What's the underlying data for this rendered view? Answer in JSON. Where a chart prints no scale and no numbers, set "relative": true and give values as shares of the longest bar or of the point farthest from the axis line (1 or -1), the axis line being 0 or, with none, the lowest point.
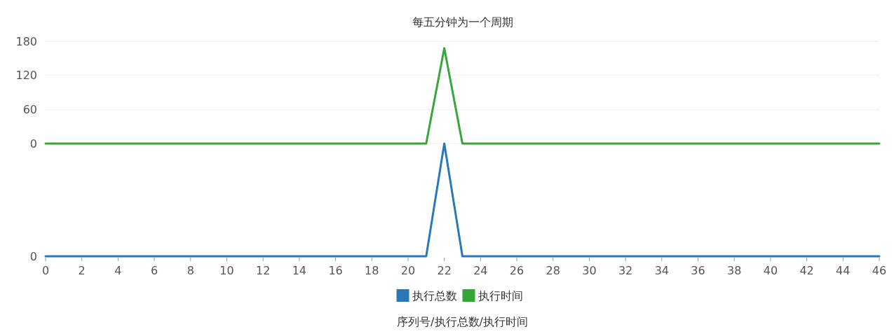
{
  "chart_data": [
    {
      "type": "line",
      "title": "每五分钟为一个周期",
      "x": [
        0,
        1,
        2,
        3,
        4,
        5,
        6,
        7,
        8,
        9,
        10,
        11,
        12,
        13,
        14,
        15,
        16,
        17,
        18,
        19,
        20,
        21,
        22,
        23,
        24,
        25,
        26,
        27,
        28,
        29,
        30,
        31,
        32,
        33,
        34,
        35,
        36,
        37,
        38,
        39,
        40,
        41,
        42,
        43,
        44,
        45,
        46
      ],
      "xlim": [
        0,
        46
      ],
      "ylim": [
        0,
        180
      ],
      "yticks": [
        0,
        60,
        120,
        180
      ],
      "grid": "y",
      "legend": "bottom",
      "tick_labels": "y",
      "series": [
        {
          "name": "执行时间",
          "color": "#37a638",
          "values": [
            0,
            0,
            0,
            0,
            0,
            0,
            0,
            0,
            0,
            0,
            0,
            0,
            0,
            0,
            0,
            0,
            0,
            0,
            0,
            0,
            0,
            0,
            168,
            0,
            0,
            0,
            0,
            0,
            0,
            0,
            0,
            0,
            0,
            0,
            0,
            0,
            0,
            0,
            0,
            0,
            0,
            0,
            0,
            0,
            0,
            0,
            0
          ]
        }
      ]
    },
    {
      "type": "line",
      "xlabel": "序列号/执行总数/执行时间",
      "x": [
        0,
        1,
        2,
        3,
        4,
        5,
        6,
        7,
        8,
        9,
        10,
        11,
        12,
        13,
        14,
        15,
        16,
        17,
        18,
        19,
        20,
        21,
        22,
        23,
        24,
        25,
        26,
        27,
        28,
        29,
        30,
        31,
        32,
        33,
        34,
        35,
        36,
        37,
        38,
        39,
        40,
        41,
        42,
        43,
        44,
        45,
        46
      ],
      "xlim": [
        0,
        46
      ],
      "xticks": [
        0,
        2,
        4,
        6,
        8,
        10,
        12,
        14,
        16,
        18,
        20,
        22,
        24,
        26,
        28,
        30,
        32,
        34,
        36,
        38,
        40,
        42,
        44,
        46
      ],
      "relative": true,
      "legend": "bottom",
      "tick_labels": "x",
      "annotations": [
        "0"
      ],
      "series": [
        {
          "name": "执行总数",
          "color": "#2a78b8",
          "values": [
            0,
            0,
            0,
            0,
            0,
            0,
            0,
            0,
            0,
            0,
            0,
            0,
            0,
            0,
            0,
            0,
            0,
            0,
            0,
            0,
            0,
            0,
            1,
            0,
            0,
            0,
            0,
            0,
            0,
            0,
            0,
            0,
            0,
            0,
            0,
            0,
            0,
            0,
            0,
            0,
            0,
            0,
            0,
            0,
            0,
            0,
            0
          ]
        }
      ]
    }
  ]
}
